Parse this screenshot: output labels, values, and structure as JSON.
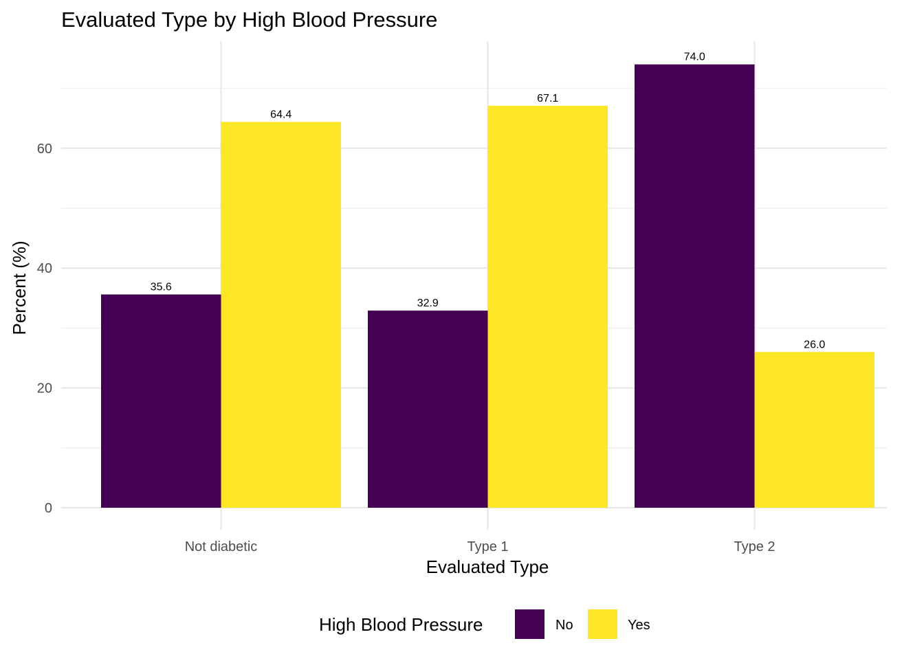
{
  "chart_data": {
    "type": "bar",
    "title": "Evaluated Type by High Blood Pressure",
    "xlabel": "Evaluated Type",
    "ylabel": "Percent (%)",
    "categories": [
      "Not diabetic",
      "Type 1",
      "Type 2"
    ],
    "series": [
      {
        "name": "No",
        "color": "#440154",
        "values": [
          35.6,
          32.9,
          74.0
        ],
        "labels": [
          "35.6",
          "32.9",
          "74.0"
        ]
      },
      {
        "name": "Yes",
        "color": "#FDE725",
        "values": [
          64.4,
          67.1,
          26.0
        ],
        "labels": [
          "64.4",
          "67.1",
          "26.0"
        ]
      }
    ],
    "ylim": [
      0,
      75
    ],
    "yticks": [
      0,
      20,
      40,
      60
    ],
    "ytick_labels": [
      "0",
      "20",
      "40",
      "60"
    ],
    "grid": true,
    "legend": {
      "title": "High Blood Pressure",
      "placement": "bottom"
    }
  }
}
